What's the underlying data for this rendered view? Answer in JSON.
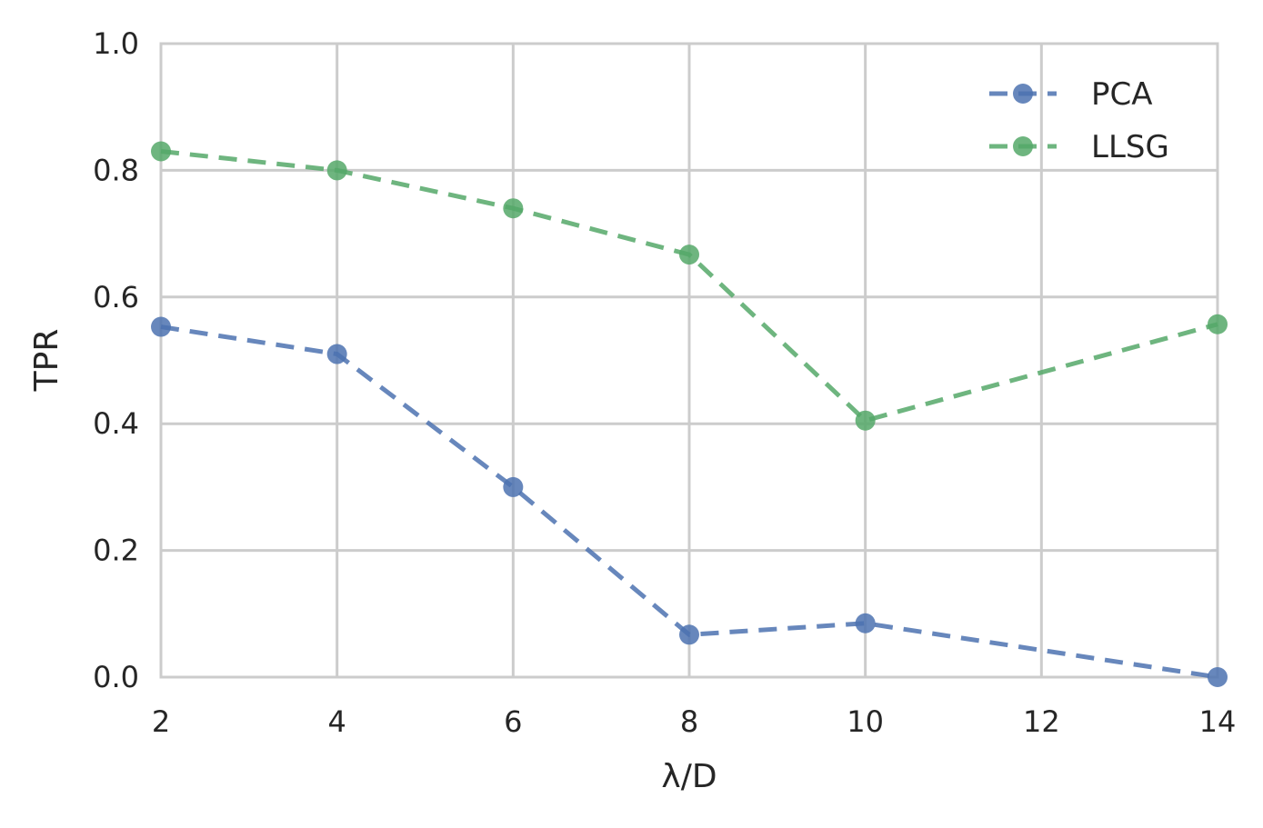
{
  "chart_data": {
    "type": "line",
    "title": "",
    "xlabel": "λ/D",
    "ylabel": "TPR",
    "x": [
      2,
      4,
      6,
      8,
      10,
      14
    ],
    "xlim": [
      2,
      14
    ],
    "ylim": [
      0.0,
      1.0
    ],
    "xticks": [
      "2",
      "4",
      "6",
      "8",
      "10",
      "12",
      "14"
    ],
    "yticks": [
      "0.0",
      "0.2",
      "0.4",
      "0.6",
      "0.8",
      "1.0"
    ],
    "grid": true,
    "legend_position": "top-right",
    "series": [
      {
        "name": "PCA",
        "color": "#4c72b0",
        "line_style": "dashed",
        "marker": "circle",
        "values": [
          0.553,
          0.51,
          0.3,
          0.067,
          0.085,
          0.0
        ]
      },
      {
        "name": "LLSG",
        "color": "#55a868",
        "line_style": "dashed",
        "marker": "circle",
        "values": [
          0.83,
          0.8,
          0.74,
          0.667,
          0.405,
          0.557
        ]
      }
    ]
  }
}
